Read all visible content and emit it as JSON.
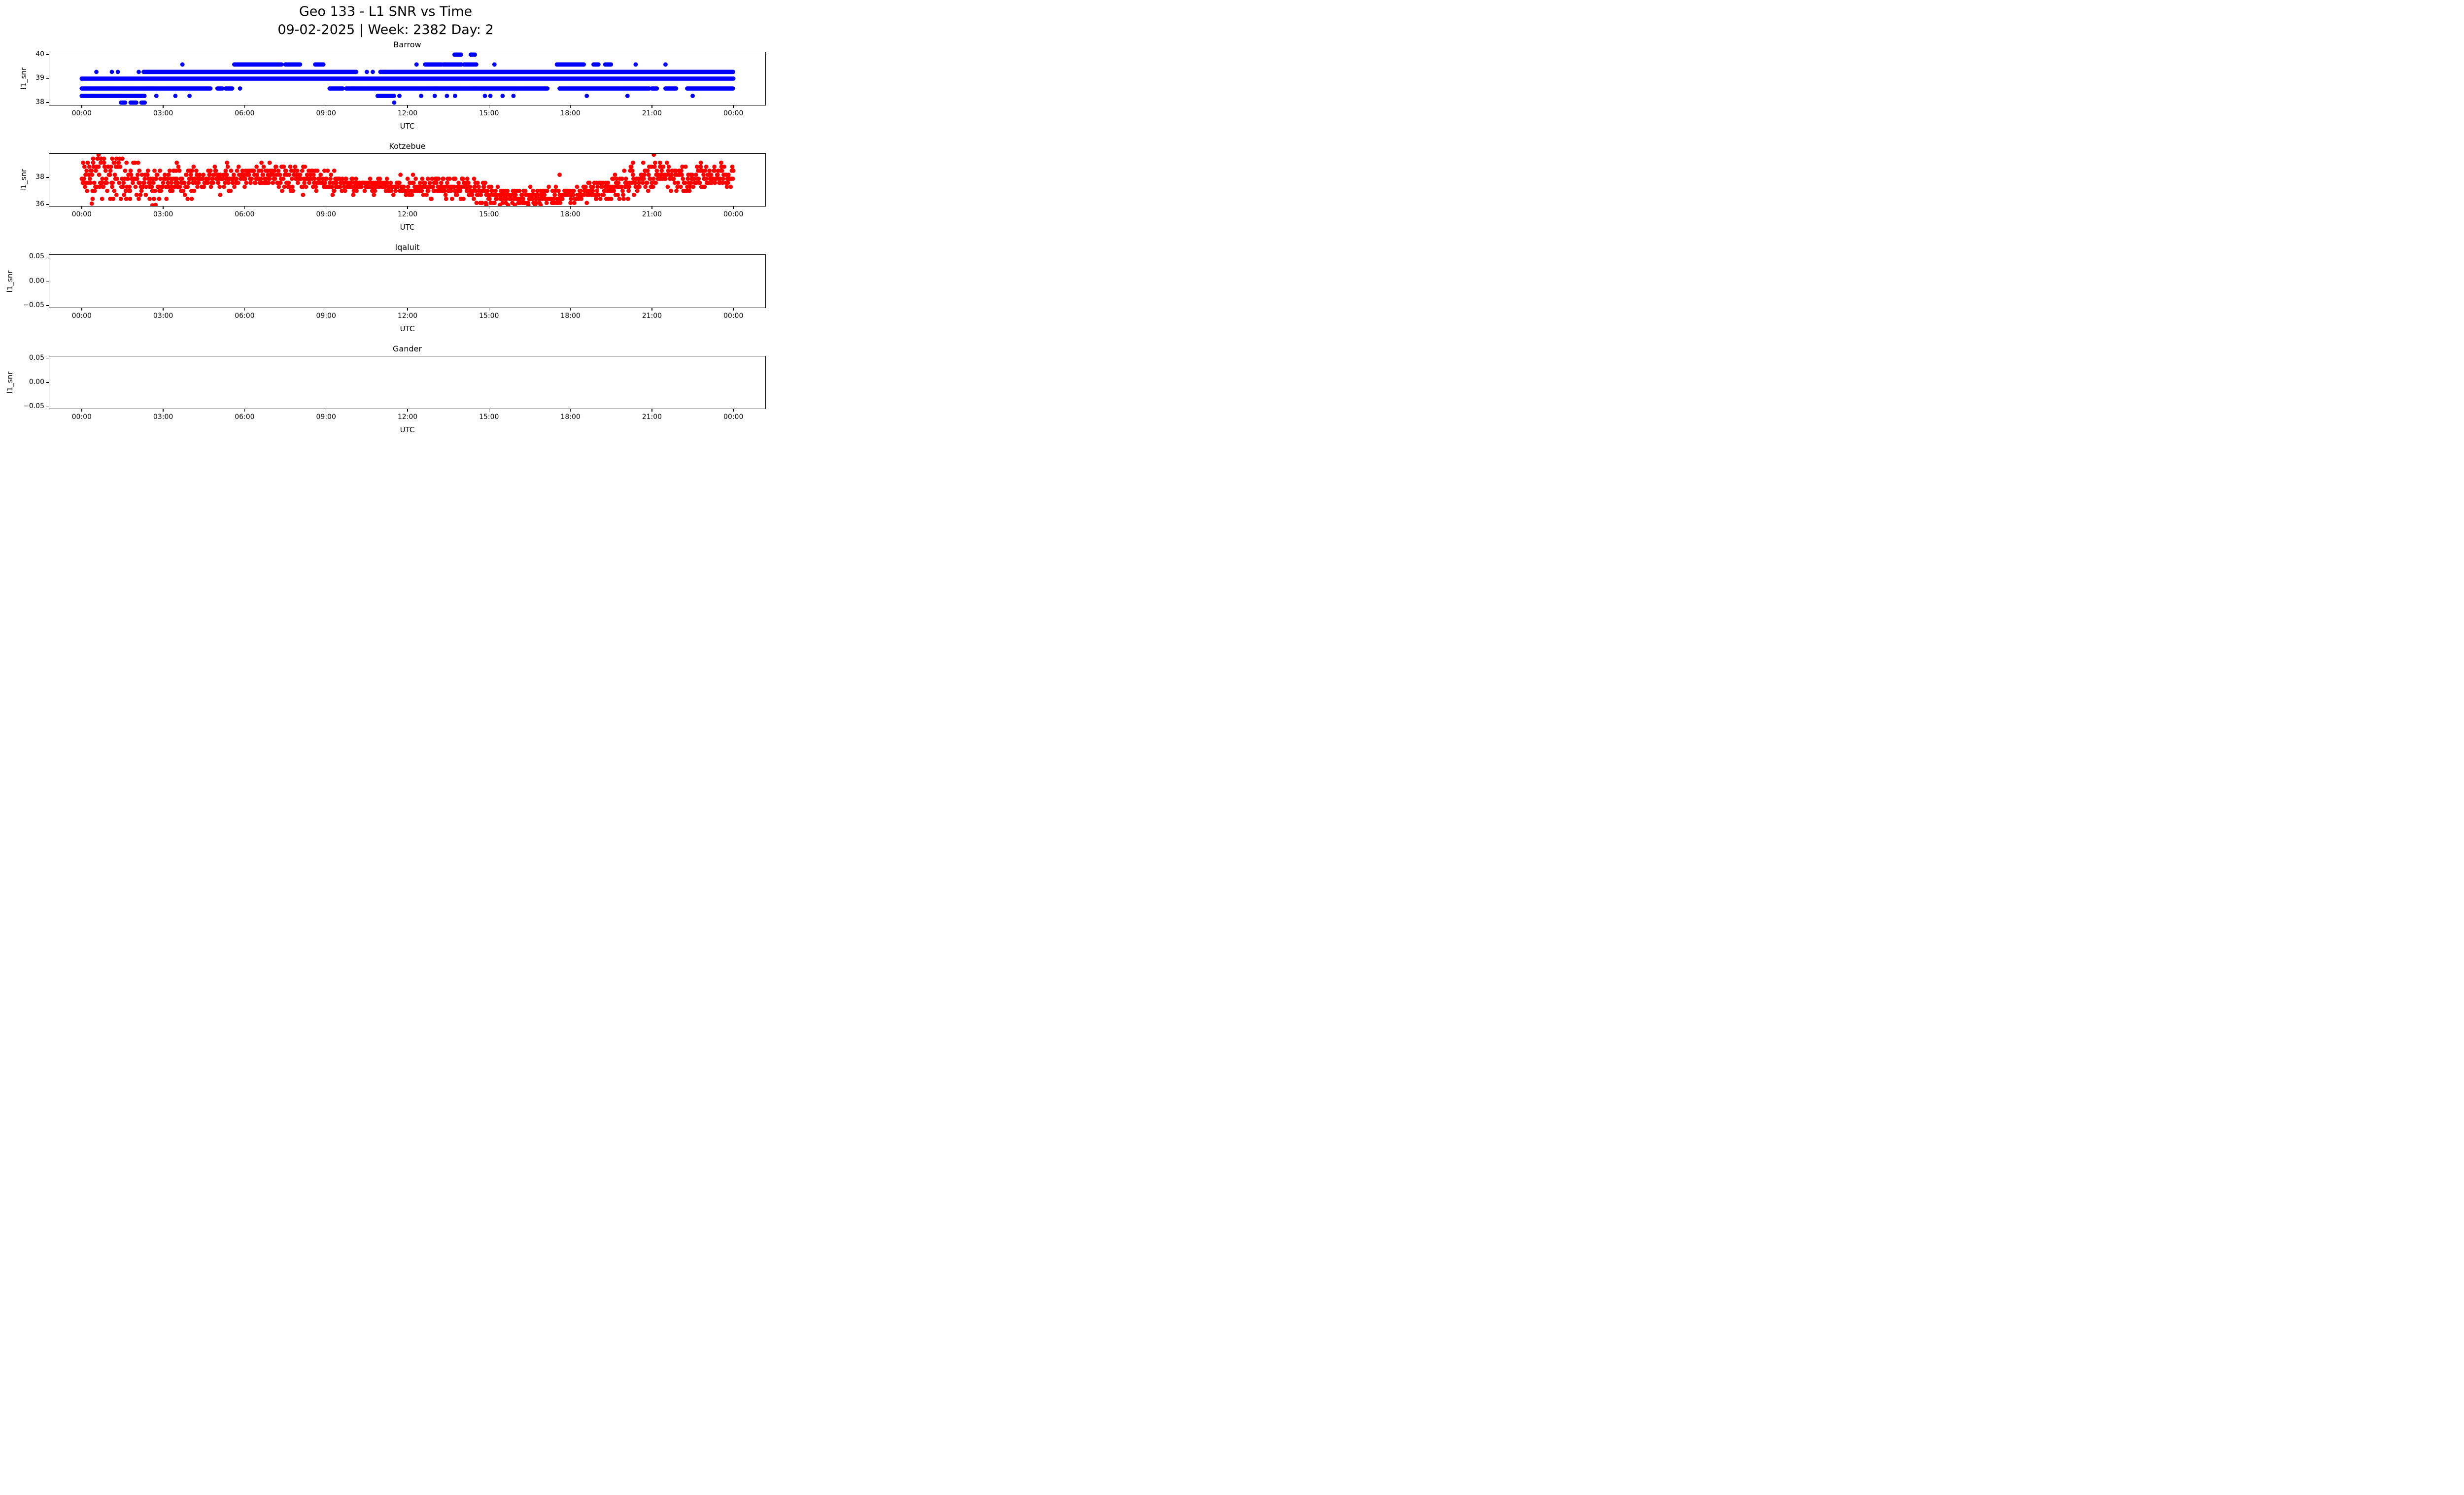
{
  "figure": {
    "suptitle_line1": "Geo 133 - L1 SNR vs Time",
    "suptitle_line2": "09-02-2025 | Week: 2382 Day: 2",
    "background": "#ffffff",
    "text_color": "#000000"
  },
  "x_axis": {
    "label": "UTC",
    "tick_hours": [
      0,
      3,
      6,
      9,
      12,
      15,
      18,
      21,
      24
    ],
    "tick_labels": [
      "00:00",
      "03:00",
      "06:00",
      "09:00",
      "12:00",
      "15:00",
      "18:00",
      "21:00",
      "00:00"
    ],
    "xlim_hours": [
      -1.21,
      25.21
    ]
  },
  "chart_data": [
    {
      "type": "scatter",
      "title": "Barrow",
      "xlabel": "UTC",
      "ylabel": "l1_snr",
      "color": "#0000ff",
      "ylim": [
        37.88,
        40.12
      ],
      "yticks": [
        {
          "value": 38,
          "label": "38"
        },
        {
          "value": 39,
          "label": "39"
        },
        {
          "value": 40,
          "label": "40"
        }
      ],
      "grid": false,
      "legend": "none",
      "point_interval_hours": 0.03,
      "levels": [
        {
          "value": 40.0,
          "segments": [
            [
              13.73,
              13.97
            ],
            [
              14.33,
              14.5
            ]
          ],
          "points": []
        },
        {
          "value": 39.59,
          "segments": [
            [
              5.62,
              7.38
            ],
            [
              7.5,
              8.05
            ],
            [
              8.6,
              8.9
            ],
            [
              12.65,
              13.25
            ],
            [
              13.32,
              14.0
            ],
            [
              14.08,
              14.55
            ],
            [
              17.5,
              18.5
            ],
            [
              18.85,
              19.05
            ],
            [
              19.28,
              19.5
            ]
          ],
          "points": [
            3.71,
            12.33,
            15.2,
            20.4,
            21.5
          ]
        },
        {
          "value": 39.28,
          "segments": [
            [
              2.28,
              10.12
            ],
            [
              11.0,
              24.0
            ]
          ],
          "points": [
            0.54,
            1.11,
            1.33,
            2.1,
            10.5,
            10.72
          ]
        },
        {
          "value": 39.0,
          "segments": [
            [
              0.0,
              24.0
            ]
          ],
          "points": []
        },
        {
          "value": 38.59,
          "segments": [
            [
              0.0,
              4.75
            ],
            [
              5.0,
              5.2
            ],
            [
              5.3,
              5.55
            ],
            [
              9.13,
              9.61
            ],
            [
              9.74,
              17.15
            ],
            [
              17.6,
              20.9
            ],
            [
              21.0,
              21.2
            ],
            [
              21.5,
              21.9
            ],
            [
              22.3,
              24.0
            ]
          ],
          "points": [
            5.83
          ]
        },
        {
          "value": 38.28,
          "segments": [
            [
              0.0,
              2.31
            ],
            [
              10.9,
              11.5
            ]
          ],
          "points": [
            2.75,
            3.45,
            3.97,
            11.7,
            12.5,
            13.0,
            13.45,
            13.75,
            14.85,
            15.05,
            15.5,
            15.9,
            18.6,
            20.1,
            22.5
          ]
        },
        {
          "value": 38.0,
          "segments": [
            [
              1.45,
              1.6
            ],
            [
              1.8,
              2.02
            ],
            [
              2.2,
              2.33
            ]
          ],
          "points": [
            11.51
          ]
        }
      ]
    },
    {
      "type": "scatter",
      "title": "Kotzebue",
      "xlabel": "UTC",
      "ylabel": "l1_snr",
      "color": "#ff0000",
      "ylim": [
        35.83,
        39.8
      ],
      "yticks": [
        {
          "value": 36,
          "label": "36"
        },
        {
          "value": 38,
          "label": "38"
        }
      ],
      "grid": false,
      "legend": "none",
      "sample_interval_hours": 0.02,
      "quantize_step": 0.3,
      "quantize_base": 36.1,
      "quantize_max": 39.4,
      "seed": 24235,
      "envelope_mean_spread": [
        [
          0.0,
          37.85,
          0.55
        ],
        [
          0.7,
          38.1,
          0.65
        ],
        [
          1.5,
          38.0,
          0.7
        ],
        [
          2.5,
          37.65,
          0.6
        ],
        [
          3.5,
          37.7,
          0.5
        ],
        [
          4.5,
          37.9,
          0.45
        ],
        [
          6.0,
          38.05,
          0.4
        ],
        [
          8.0,
          38.0,
          0.4
        ],
        [
          9.0,
          37.75,
          0.4
        ],
        [
          9.7,
          37.45,
          0.3
        ],
        [
          11.0,
          37.4,
          0.3
        ],
        [
          12.5,
          37.3,
          0.35
        ],
        [
          14.0,
          37.1,
          0.4
        ],
        [
          15.0,
          36.8,
          0.4
        ],
        [
          16.0,
          36.6,
          0.35
        ],
        [
          17.5,
          36.6,
          0.35
        ],
        [
          18.5,
          36.8,
          0.35
        ],
        [
          19.3,
          37.0,
          0.45
        ],
        [
          19.9,
          37.4,
          0.55
        ],
        [
          20.6,
          37.9,
          0.5
        ],
        [
          21.2,
          38.15,
          0.5
        ],
        [
          22.0,
          38.0,
          0.45
        ],
        [
          23.0,
          37.9,
          0.4
        ],
        [
          24.0,
          38.0,
          0.45
        ]
      ],
      "outliers": [
        [
          0.42,
          39.4
        ],
        [
          0.62,
          39.7
        ],
        [
          0.72,
          39.4
        ],
        [
          0.82,
          39.4
        ],
        [
          1.12,
          39.4
        ],
        [
          1.28,
          39.4
        ],
        [
          1.5,
          39.4
        ],
        [
          0.05,
          39.1
        ],
        [
          0.7,
          39.1
        ],
        [
          1.2,
          39.1
        ],
        [
          1.35,
          39.1
        ],
        [
          1.65,
          39.1
        ],
        [
          3.5,
          39.1
        ],
        [
          5.35,
          39.1
        ],
        [
          6.62,
          39.1
        ],
        [
          6.92,
          39.1
        ],
        [
          0.37,
          36.05
        ],
        [
          2.6,
          35.92
        ],
        [
          2.72,
          35.95
        ],
        [
          0.4,
          36.4
        ],
        [
          0.75,
          36.4
        ],
        [
          1.05,
          36.4
        ],
        [
          1.78,
          36.4
        ],
        [
          2.1,
          36.4
        ],
        [
          2.5,
          36.4
        ],
        [
          2.85,
          36.4
        ],
        [
          3.9,
          36.4
        ],
        [
          4.05,
          36.4
        ],
        [
          5.1,
          36.7
        ],
        [
          8.15,
          36.7
        ],
        [
          9.3,
          38.5
        ],
        [
          17.6,
          38.2
        ],
        [
          12.75,
          37.9
        ],
        [
          12.9,
          37.9
        ],
        [
          13.1,
          37.9
        ],
        [
          13.3,
          37.9
        ],
        [
          13.55,
          37.9
        ],
        [
          13.75,
          37.9
        ],
        [
          14.0,
          37.9
        ],
        [
          14.2,
          37.9
        ],
        [
          14.45,
          37.9
        ],
        [
          14.9,
          35.95
        ],
        [
          15.4,
          35.95
        ],
        [
          15.7,
          35.95
        ],
        [
          15.95,
          35.95
        ],
        [
          16.45,
          35.95
        ],
        [
          16.7,
          35.95
        ],
        [
          16.9,
          35.95
        ],
        [
          18.95,
          36.4
        ],
        [
          19.5,
          36.4
        ],
        [
          21.07,
          39.7
        ],
        [
          20.3,
          39.1
        ],
        [
          20.68,
          39.1
        ],
        [
          21.12,
          39.1
        ],
        [
          21.3,
          39.1
        ],
        [
          21.55,
          39.1
        ],
        [
          22.8,
          39.1
        ],
        [
          23.55,
          39.1
        ],
        [
          23.0,
          38.8
        ],
        [
          23.3,
          38.8
        ]
      ]
    },
    {
      "type": "scatter",
      "title": "Iqaluit",
      "xlabel": "UTC",
      "ylabel": "l1_snr",
      "color": "#0000ff",
      "ylim": [
        -0.055,
        0.055
      ],
      "yticks": [
        {
          "value": -0.05,
          "label": "−0.05"
        },
        {
          "value": 0.0,
          "label": "0.00"
        },
        {
          "value": 0.05,
          "label": "0.05"
        }
      ],
      "grid": false,
      "legend": "none",
      "levels": [],
      "note_no_data": true
    },
    {
      "type": "scatter",
      "title": "Gander",
      "xlabel": "UTC",
      "ylabel": "l1_snr",
      "color": "#0000ff",
      "ylim": [
        -0.055,
        0.055
      ],
      "yticks": [
        {
          "value": -0.05,
          "label": "−0.05"
        },
        {
          "value": 0.0,
          "label": "0.00"
        },
        {
          "value": 0.05,
          "label": "0.05"
        }
      ],
      "grid": false,
      "legend": "none",
      "levels": [],
      "note_no_data": true
    }
  ]
}
